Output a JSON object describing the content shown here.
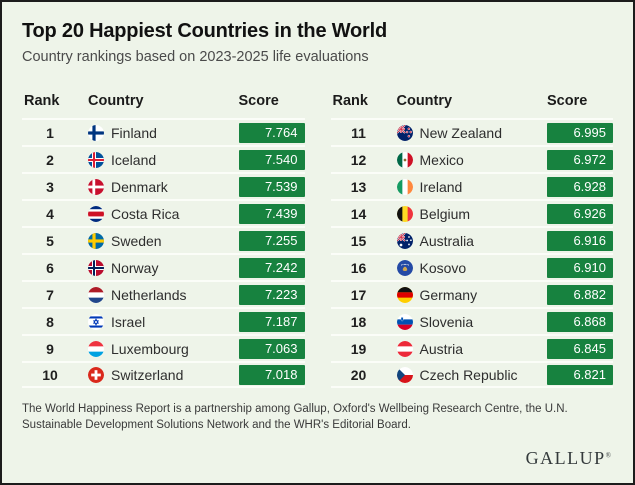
{
  "page": {
    "title": "Top 20 Happiest Countries in the World",
    "subtitle": "Country rankings based on 2023-2025 life evaluations",
    "footnote": "The World Happiness Report is a partnership among Gallup, Oxford's Wellbeing Research Centre, the U.N. Sustainable Development Solutions Network and the WHR's Editorial Board.",
    "brand": "GALLUP",
    "brand_mark": "®"
  },
  "colors": {
    "score_badge": "#17823f",
    "background": "#eef4e9",
    "row_rule": "#fbfdf8"
  },
  "table": {
    "headers": {
      "rank": "Rank",
      "country": "Country",
      "score": "Score"
    },
    "columns": [
      [
        {
          "rank": "1",
          "country": "Finland",
          "flag": "fi",
          "score": "7.764"
        },
        {
          "rank": "2",
          "country": "Iceland",
          "flag": "is",
          "score": "7.540"
        },
        {
          "rank": "3",
          "country": "Denmark",
          "flag": "dk",
          "score": "7.539"
        },
        {
          "rank": "4",
          "country": "Costa Rica",
          "flag": "cr",
          "score": "7.439"
        },
        {
          "rank": "5",
          "country": "Sweden",
          "flag": "se",
          "score": "7.255"
        },
        {
          "rank": "6",
          "country": "Norway",
          "flag": "no",
          "score": "7.242"
        },
        {
          "rank": "7",
          "country": "Netherlands",
          "flag": "nl",
          "score": "7.223"
        },
        {
          "rank": "8",
          "country": "Israel",
          "flag": "il",
          "score": "7.187"
        },
        {
          "rank": "9",
          "country": "Luxembourg",
          "flag": "lu",
          "score": "7.063"
        },
        {
          "rank": "10",
          "country": "Switzerland",
          "flag": "ch",
          "score": "7.018"
        }
      ],
      [
        {
          "rank": "11",
          "country": "New Zealand",
          "flag": "nz",
          "score": "6.995"
        },
        {
          "rank": "12",
          "country": "Mexico",
          "flag": "mx",
          "score": "6.972"
        },
        {
          "rank": "13",
          "country": "Ireland",
          "flag": "ie",
          "score": "6.928"
        },
        {
          "rank": "14",
          "country": "Belgium",
          "flag": "be",
          "score": "6.926"
        },
        {
          "rank": "15",
          "country": "Australia",
          "flag": "au",
          "score": "6.916"
        },
        {
          "rank": "16",
          "country": "Kosovo",
          "flag": "xk",
          "score": "6.910"
        },
        {
          "rank": "17",
          "country": "Germany",
          "flag": "de",
          "score": "6.882"
        },
        {
          "rank": "18",
          "country": "Slovenia",
          "flag": "si",
          "score": "6.868"
        },
        {
          "rank": "19",
          "country": "Austria",
          "flag": "at",
          "score": "6.845"
        },
        {
          "rank": "20",
          "country": "Czech Republic",
          "flag": "cz",
          "score": "6.821"
        }
      ]
    ]
  },
  "chart_data": {
    "type": "table",
    "title": "Top 20 Happiest Countries in the World",
    "subtitle": "Country rankings based on 2023-2025 life evaluations",
    "columns": [
      "Rank",
      "Country",
      "Score"
    ],
    "rows": [
      [
        1,
        "Finland",
        7.764
      ],
      [
        2,
        "Iceland",
        7.54
      ],
      [
        3,
        "Denmark",
        7.539
      ],
      [
        4,
        "Costa Rica",
        7.439
      ],
      [
        5,
        "Sweden",
        7.255
      ],
      [
        6,
        "Norway",
        7.242
      ],
      [
        7,
        "Netherlands",
        7.223
      ],
      [
        8,
        "Israel",
        7.187
      ],
      [
        9,
        "Luxembourg",
        7.063
      ],
      [
        10,
        "Switzerland",
        7.018
      ],
      [
        11,
        "New Zealand",
        6.995
      ],
      [
        12,
        "Mexico",
        6.972
      ],
      [
        13,
        "Ireland",
        6.928
      ],
      [
        14,
        "Belgium",
        6.926
      ],
      [
        15,
        "Australia",
        6.916
      ],
      [
        16,
        "Kosovo",
        6.91
      ],
      [
        17,
        "Germany",
        6.882
      ],
      [
        18,
        "Slovenia",
        6.868
      ],
      [
        19,
        "Austria",
        6.845
      ],
      [
        20,
        "Czech Republic",
        6.821
      ]
    ],
    "source_note": "The World Happiness Report is a partnership among Gallup, Oxford's Wellbeing Research Centre, the U.N. Sustainable Development Solutions Network and the WHR's Editorial Board.",
    "brand": "GALLUP"
  }
}
